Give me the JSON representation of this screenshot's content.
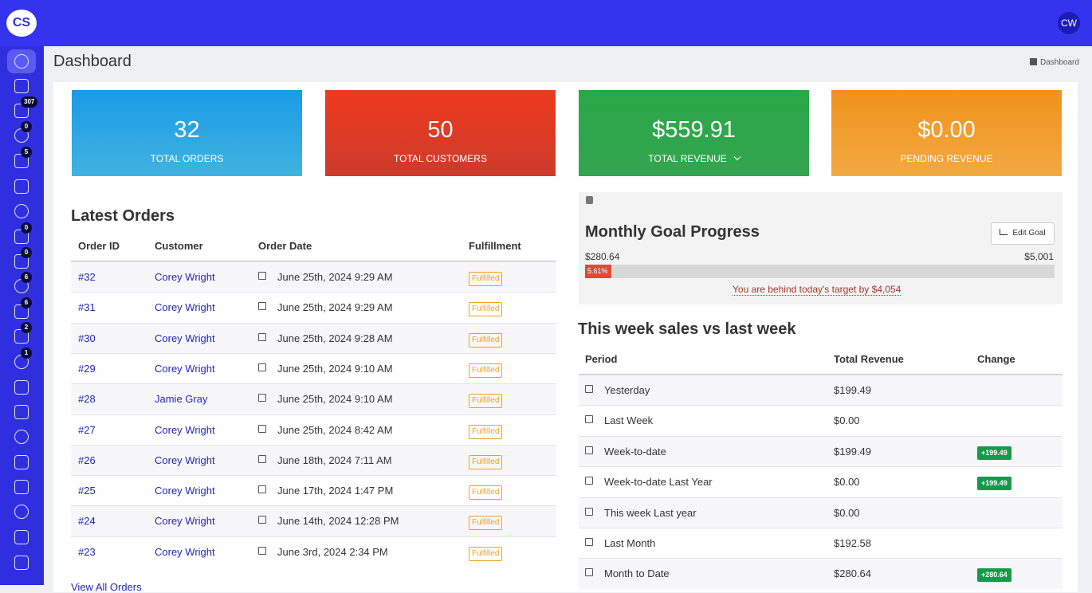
{
  "header": {
    "logo": "CS",
    "avatar": "CW"
  },
  "sidebar": {
    "badges": [
      "307",
      "0",
      "5",
      "0",
      "0",
      "6",
      "6",
      "2",
      "1"
    ]
  },
  "page": {
    "title": "Dashboard",
    "breadcrumb": "Dashboard"
  },
  "stats": [
    {
      "value": "32",
      "label": "TOTAL ORDERS"
    },
    {
      "value": "50",
      "label": "TOTAL CUSTOMERS"
    },
    {
      "value": "$559.91",
      "label": "TOTAL REVENUE"
    },
    {
      "value": "$0.00",
      "label": "PENDING REVENUE"
    }
  ],
  "orders": {
    "title": "Latest Orders",
    "columns": [
      "Order ID",
      "Customer",
      "Order Date",
      "Fulfillment"
    ],
    "rows": [
      [
        "#32",
        "Corey Wright",
        "June 25th, 2024 9:29 AM",
        "Fulfilled"
      ],
      [
        "#31",
        "Corey Wright",
        "June 25th, 2024 9:29 AM",
        "Fulfilled"
      ],
      [
        "#30",
        "Corey Wright",
        "June 25th, 2024 9:28 AM",
        "Fulfilled"
      ],
      [
        "#29",
        "Corey Wright",
        "June 25th, 2024 9:10 AM",
        "Fulfilled"
      ],
      [
        "#28",
        "Jamie Gray",
        "June 25th, 2024 9:10 AM",
        "Fulfilled"
      ],
      [
        "#27",
        "Corey Wright",
        "June 25th, 2024 8:42 AM",
        "Fulfilled"
      ],
      [
        "#26",
        "Corey Wright",
        "June 18th, 2024 7:11 AM",
        "Fulfilled"
      ],
      [
        "#25",
        "Corey Wright",
        "June 17th, 2024 1:47 PM",
        "Fulfilled"
      ],
      [
        "#24",
        "Corey Wright",
        "June 14th, 2024 12:28 PM",
        "Fulfilled"
      ],
      [
        "#23",
        "Corey Wright",
        "June 3rd, 2024 2:34 PM",
        "Fulfilled"
      ]
    ],
    "link": "View All Orders"
  },
  "goal": {
    "title": "Monthly Goal Progress",
    "button": "Edit Goal",
    "current": "$280.64",
    "target": "$5,001",
    "progress": {
      "value": 5.61,
      "label": "5.61%"
    },
    "note": "You are behind today's target by $4,054"
  },
  "weekly": {
    "title": "This week sales vs last week",
    "columns": [
      "Period",
      "Total Revenue",
      "Change"
    ],
    "rows": [
      [
        "Yesterday",
        "$199.49",
        null
      ],
      [
        "Last Week",
        "$0.00",
        null
      ],
      [
        "Week-to-date",
        "$199.49",
        "+199.49"
      ],
      [
        "Week-to-date Last Year",
        "$0.00",
        "+199.49"
      ],
      [
        "This week Last year",
        "$0.00",
        null
      ],
      [
        "Last Month",
        "$192.58",
        null
      ],
      [
        "Month to Date",
        "$280.64",
        "+280.64"
      ]
    ]
  }
}
